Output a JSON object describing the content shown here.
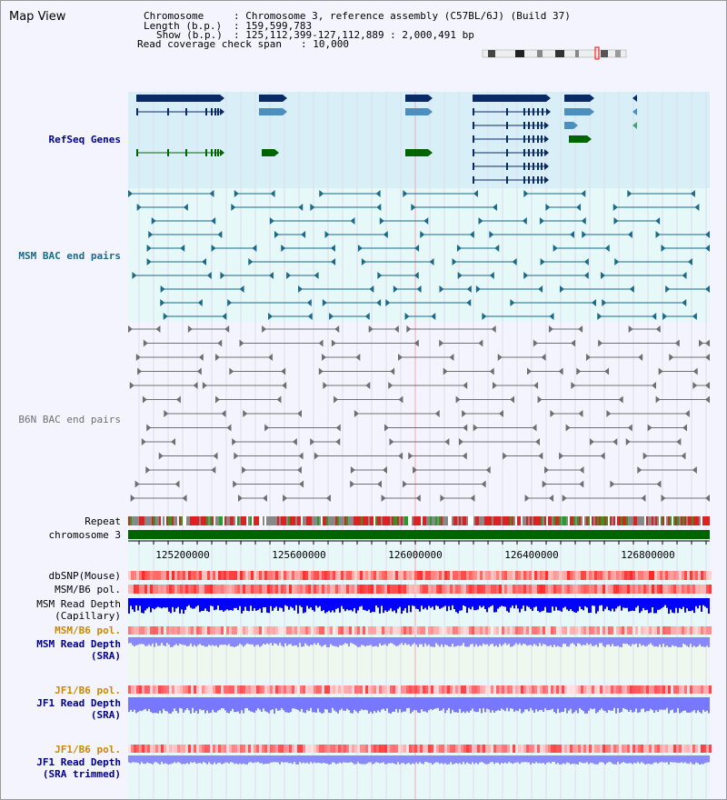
{
  "view_title": "Map View",
  "info": {
    "chromosome_label": "Chromosome",
    "chromosome_value": ": Chromosome 3, reference assembly (C57BL/6J) (Build 37)",
    "length_label": "Length (b.p.)",
    "length_value": ": 159,599,783",
    "show_label": "Show (b.p.)",
    "show_value": ": 125,112,399-127,112,889 : 2,000,491 bp",
    "coverage_label": "Read coverage check span",
    "coverage_value": ": 10,000"
  },
  "tracks": {
    "refseq": "RefSeq Genes",
    "msm_bac": "MSM BAC end pairs",
    "b6n_bac": "B6N BAC end pairs",
    "repeat": "Repeat",
    "chromosome": "chromosome 3",
    "dbsnp": "dbSNP(Mouse)",
    "msm_b6_pol_1": "MSM/B6 pol.",
    "msm_read_depth_cap_1": "MSM Read Depth",
    "msm_read_depth_cap_2": "(Capillary)",
    "msm_b6_pol_2": "MSM/B6 pol.",
    "msm_read_depth_sra_1": "MSM Read Depth",
    "msm_read_depth_sra_2": "(SRA)",
    "jf1_b6_pol_1": "JF1/B6 pol.",
    "jf1_read_depth_sra_1": "JF1 Read Depth",
    "jf1_read_depth_sra_2": "(SRA)",
    "jf1_b6_pol_2": "JF1/B6 pol.",
    "jf1_read_depth_trim_1": "JF1 Read Depth",
    "jf1_read_depth_trim_2": "(SRA trimmed)"
  },
  "axis_ticks": [
    "125200000",
    "125600000",
    "126000000",
    "126400000",
    "126800000"
  ],
  "colors": {
    "refseq_dark": "#0a2a66",
    "refseq_light": "#4a8fc0",
    "refseq_green": "#006400",
    "msm_bac": "#1b6a8a",
    "b6n_bac": "#6f6f6f",
    "label_blue": "#00008b",
    "label_teal": "#1b6a8a",
    "label_orange": "#cc8800",
    "chromosome_green": "#006400",
    "depth_blue": "#0000ff",
    "depth_light": "#7777ff"
  }
}
